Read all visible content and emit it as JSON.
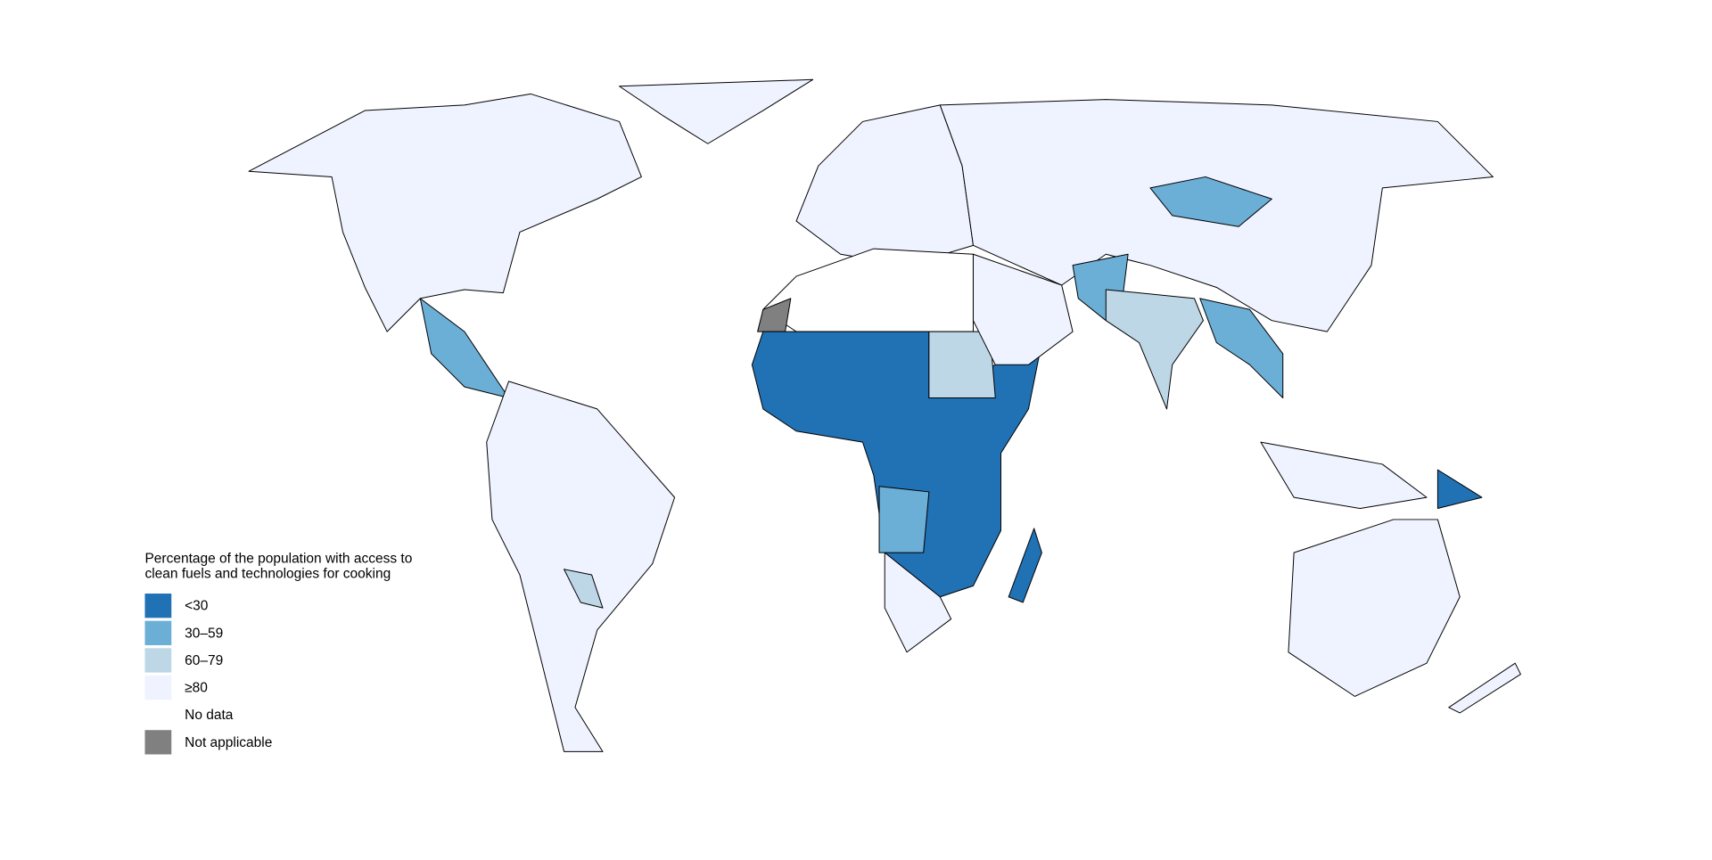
{
  "legend": {
    "title_lines": [
      "Percentage of the population with access to",
      "clean fuels and technologies for cooking"
    ],
    "items": [
      {
        "label": "<30",
        "color": "#2171b5"
      },
      {
        "label": "30–59",
        "color": "#6baed6"
      },
      {
        "label": "60–79",
        "color": "#bdd7e7"
      },
      {
        "label": "≥80",
        "color": "#eff3ff"
      },
      {
        "label": "No data",
        "color": "#ffffff"
      },
      {
        "label": "Not applicable",
        "color": "#808080"
      }
    ]
  }
}
